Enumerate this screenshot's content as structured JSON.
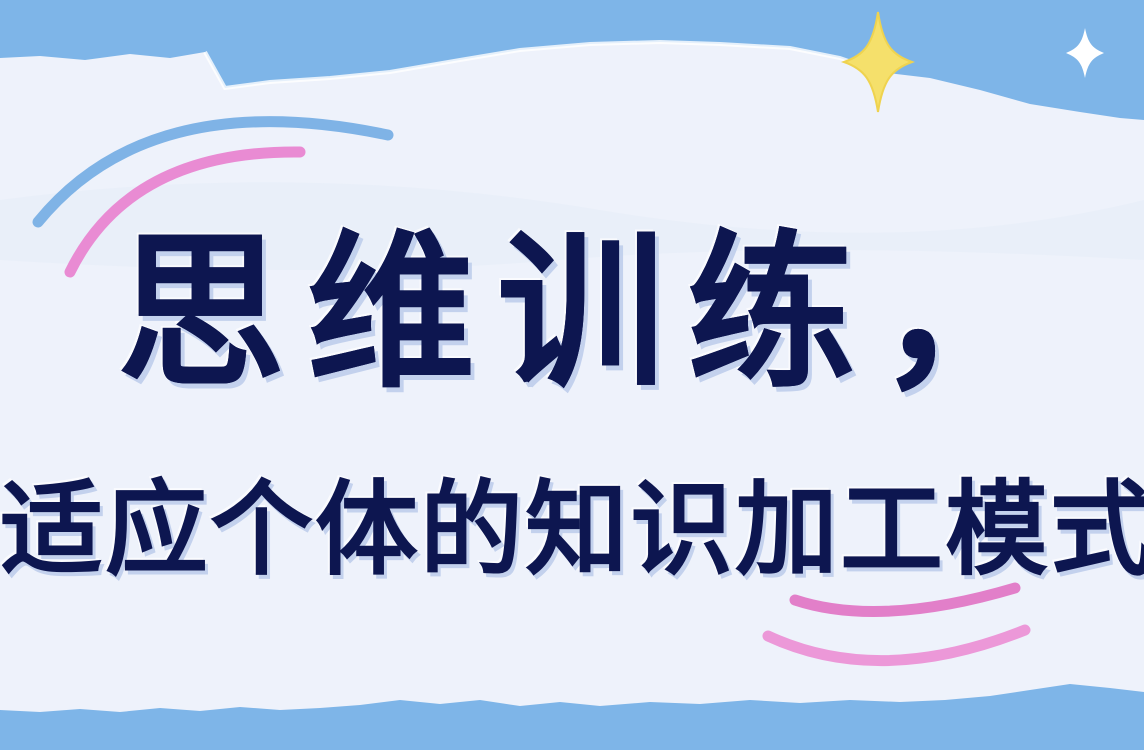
{
  "poster": {
    "line1": "思维训练，",
    "line2": "适应个体的知识加工模式"
  },
  "colors": {
    "sky_blue": "#7eb5e8",
    "paper": "#eef2fb",
    "ink_navy": "#0d1650",
    "accent_pink": "#e98bd3",
    "accent_blue": "#7fb3e6",
    "star_yellow": "#f5e06b",
    "star_white": "#ffffff"
  },
  "icons": {
    "star_large": "four-point-star-icon",
    "star_small": "four-point-star-icon"
  }
}
